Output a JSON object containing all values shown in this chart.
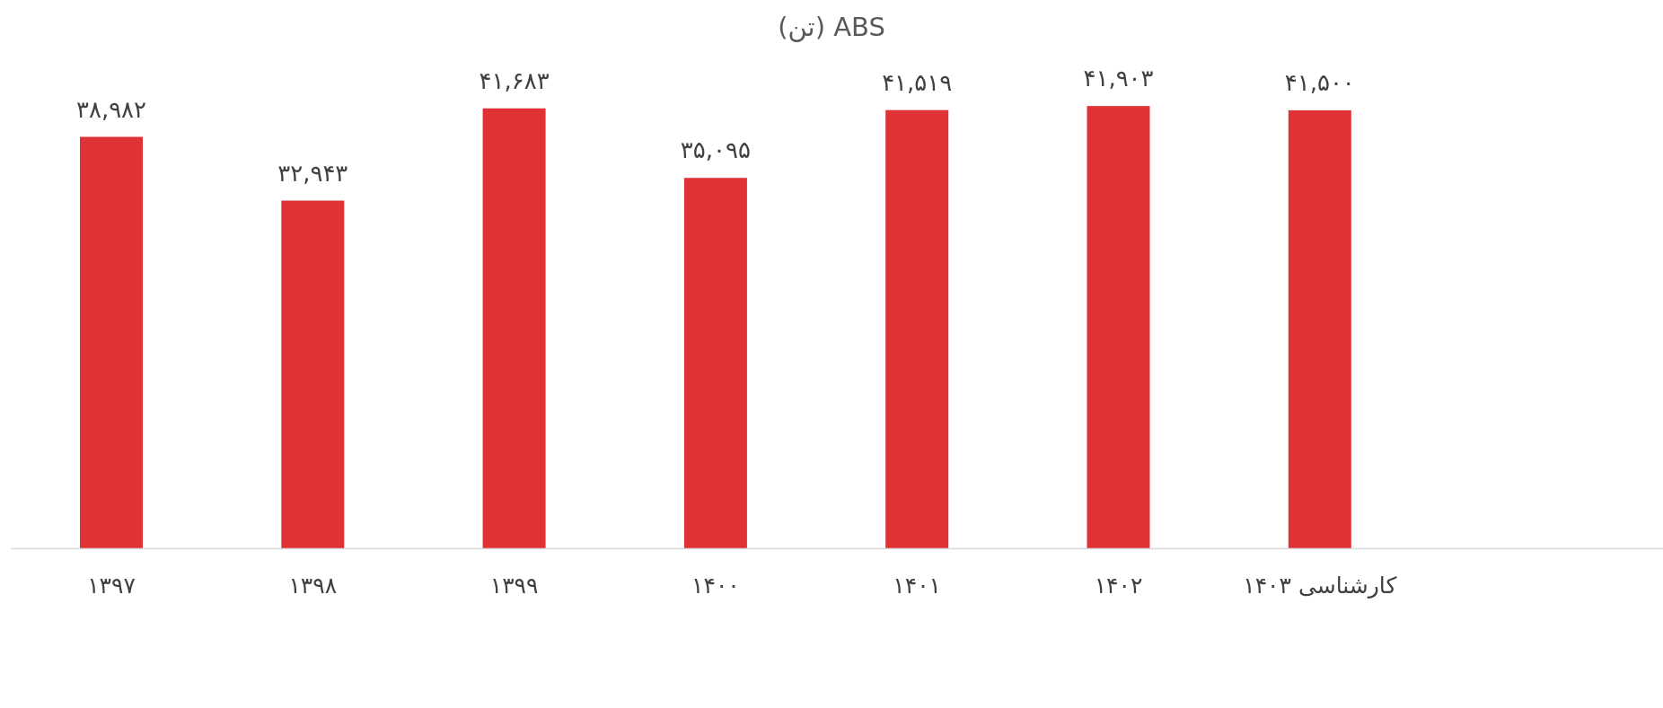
{
  "chart_data": {
    "type": "bar",
    "title": "ABS (تن)",
    "categories": [
      "۱۳۹۷",
      "۱۳۹۸",
      "۱۳۹۹",
      "۱۴۰۰",
      "۱۴۰۱",
      "۱۴۰۲",
      "کارشناسی ۱۴۰۳"
    ],
    "values": [
      38982,
      32943,
      41683,
      35095,
      41519,
      41903,
      41500
    ],
    "value_labels": [
      "۳۸,۹۸۲",
      "۳۲,۹۴۳",
      "۴۱,۶۸۳",
      "۳۵,۰۹۵",
      "۴۱,۵۱۹",
      "۴۱,۹۰۳",
      "۴۱,۵۰۰"
    ],
    "color": "#e03236"
  }
}
